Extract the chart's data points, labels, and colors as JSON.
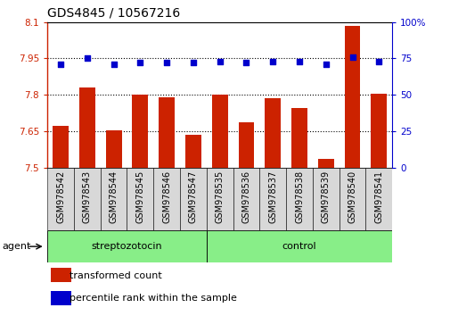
{
  "title": "GDS4845 / 10567216",
  "samples": [
    "GSM978542",
    "GSM978543",
    "GSM978544",
    "GSM978545",
    "GSM978546",
    "GSM978547",
    "GSM978535",
    "GSM978536",
    "GSM978537",
    "GSM978538",
    "GSM978539",
    "GSM978540",
    "GSM978541"
  ],
  "red_values": [
    7.67,
    7.83,
    7.655,
    7.8,
    7.79,
    7.635,
    7.8,
    7.685,
    7.785,
    7.745,
    7.535,
    8.085,
    7.805
  ],
  "blue_values": [
    71,
    75,
    71,
    72,
    72,
    72,
    73,
    72,
    73,
    73,
    71,
    76,
    73
  ],
  "groups": [
    "streptozotocin",
    "streptozotocin",
    "streptozotocin",
    "streptozotocin",
    "streptozotocin",
    "streptozotocin",
    "control",
    "control",
    "control",
    "control",
    "control",
    "control",
    "control"
  ],
  "bar_color": "#cc2200",
  "dot_color": "#0000cc",
  "ylim_left": [
    7.5,
    8.1
  ],
  "ylim_right": [
    0,
    100
  ],
  "yticks_left": [
    7.5,
    7.65,
    7.8,
    7.95,
    8.1
  ],
  "ytick_labels_left": [
    "7.5",
    "7.65",
    "7.8",
    "7.95",
    "8.1"
  ],
  "yticks_right": [
    0,
    25,
    50,
    75,
    100
  ],
  "ytick_labels_right": [
    "0",
    "25",
    "50",
    "75",
    "100%"
  ],
  "gridlines": [
    7.65,
    7.8,
    7.95
  ],
  "agent_label": "agent",
  "legend_red": "transformed count",
  "legend_blue": "percentile rank within the sample",
  "bg_color": "#ffffff",
  "title_fontsize": 10,
  "tick_fontsize": 7.5,
  "label_fontsize": 8,
  "bar_width": 0.6,
  "green_color": "#88ee88",
  "gray_color": "#d8d8d8",
  "strep_count": 6,
  "ctrl_count": 7
}
